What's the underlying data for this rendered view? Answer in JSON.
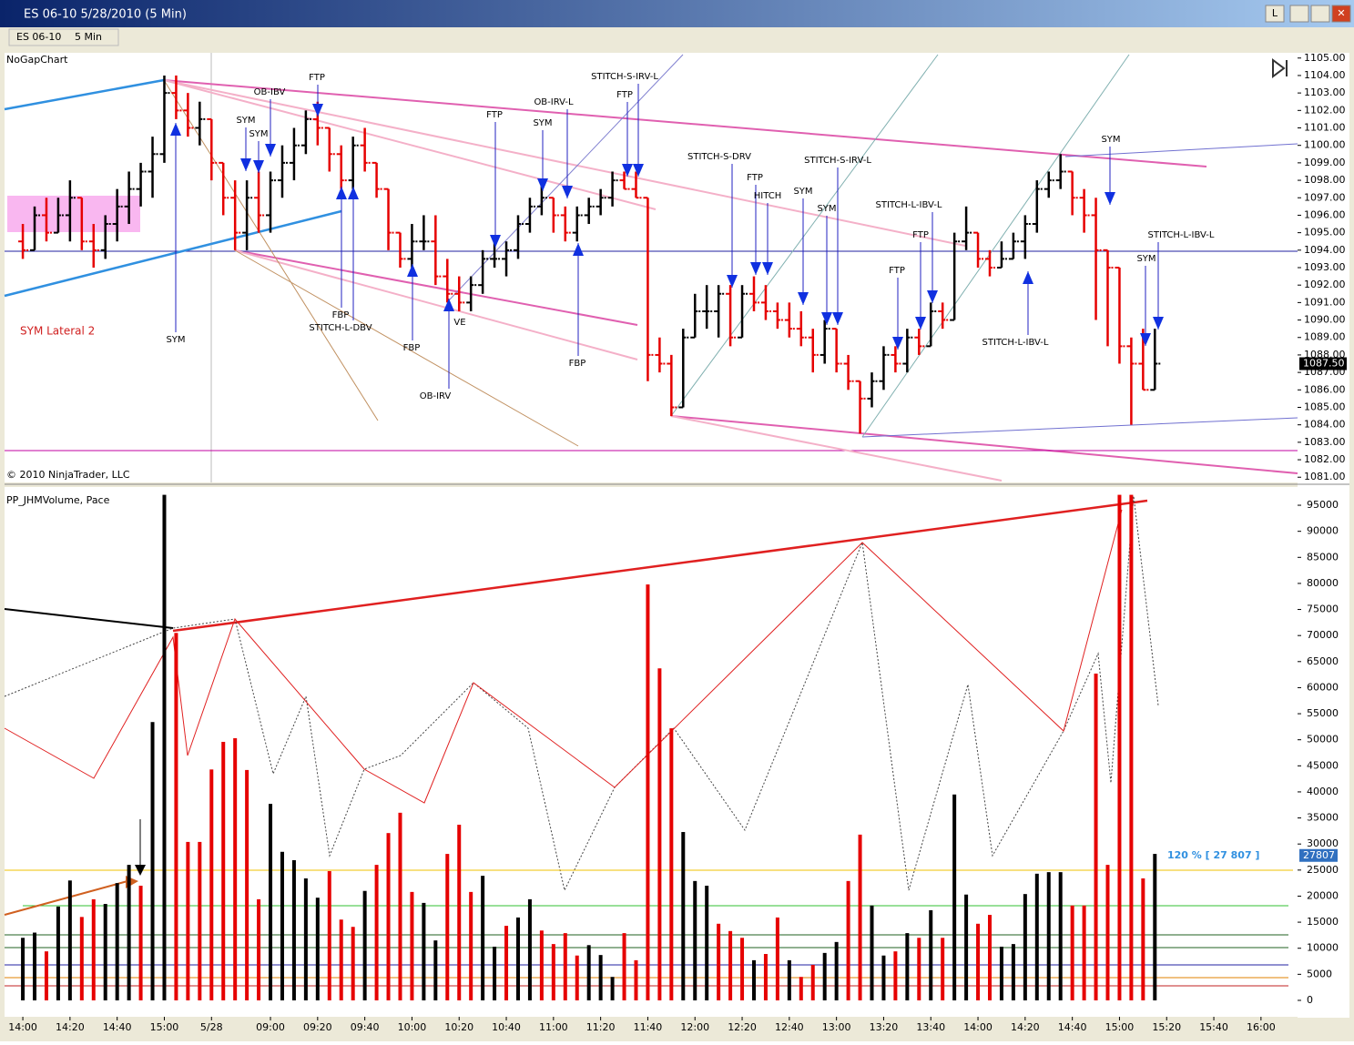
{
  "window": {
    "title": "ES 06-10  5/28/2010 (5 Min)",
    "toolbar": [
      "ES 06-10",
      "5 Min"
    ],
    "buttons": [
      "L"
    ]
  },
  "chart_data": [
    {
      "type": "ohlc",
      "panel_label": "NoGapChart",
      "copyright": "© 2010 NinjaTrader, LLC",
      "note": "SYM Lateral 2",
      "up_color": "#000000",
      "down_color": "#e60000",
      "xlim": [
        -1.55,
        108.1
      ],
      "ylim": [
        1080.7,
        1105.3
      ],
      "yticks": [
        {
          "value": 1081,
          "label": "1081.00"
        },
        {
          "value": 1082,
          "label": "1082.00"
        },
        {
          "value": 1083,
          "label": "1083.00"
        },
        {
          "value": 1084,
          "label": "1084.00"
        },
        {
          "value": 1085,
          "label": "1085.00"
        },
        {
          "value": 1086,
          "label": "1086.00"
        },
        {
          "value": 1087,
          "label": "1087.00"
        },
        {
          "value": 1088,
          "label": "1088.00"
        },
        {
          "value": 1089,
          "label": "1089.00"
        },
        {
          "value": 1090,
          "label": "1090.00"
        },
        {
          "value": 1091,
          "label": "1091.00"
        },
        {
          "value": 1092,
          "label": "1092.00"
        },
        {
          "value": 1093,
          "label": "1093.00"
        },
        {
          "value": 1094,
          "label": "1094.00"
        },
        {
          "value": 1095,
          "label": "1095.00"
        },
        {
          "value": 1096,
          "label": "1096.00"
        },
        {
          "value": 1097,
          "label": "1097.00"
        },
        {
          "value": 1098,
          "label": "1098.00"
        },
        {
          "value": 1099,
          "label": "1099.00"
        },
        {
          "value": 1100,
          "label": "1100.00"
        },
        {
          "value": 1101,
          "label": "1101.00"
        },
        {
          "value": 1102,
          "label": "1102.00"
        },
        {
          "value": 1103,
          "label": "1103.00"
        },
        {
          "value": 1104,
          "label": "1104.00"
        },
        {
          "value": 1105,
          "label": "1105.00"
        }
      ],
      "last_price": {
        "value": 1087.5,
        "label": "1087.50"
      },
      "open": [
        1094.5,
        1094,
        1096,
        1095,
        1096,
        1097,
        1094.5,
        1094,
        1095.5,
        1096.5,
        1097.5,
        1098.5,
        1099.5,
        1103,
        1102,
        1101,
        1101.5,
        1099,
        1097,
        1095,
        1097,
        1096,
        1098,
        1099,
        1100,
        1101.5,
        1101,
        1099.5,
        1098,
        1100,
        1099,
        1097.5,
        1095,
        1093.5,
        1094.5,
        1094.5,
        1092.5,
        1091.5,
        1091,
        1092,
        1093.5,
        1093.5,
        1094,
        1095.5,
        1096.5,
        1097,
        1096,
        1095,
        1096,
        1096.5,
        1097,
        1098,
        1097.5,
        1097,
        1088,
        1087.5,
        1085,
        1089,
        1090.5,
        1090.5,
        1091.5,
        1089,
        1091.5,
        1091,
        1090.5,
        1090,
        1089.5,
        1089,
        1088,
        1089.5,
        1087.5,
        1086.5,
        1085.5,
        1086.5,
        1088,
        1087.5,
        1089,
        1088.5,
        1090.5,
        1090,
        1094.5,
        1095,
        1093.5,
        1093,
        1093.5,
        1094.5,
        1095.5,
        1097.5,
        1098,
        1098.5,
        1097,
        1096,
        1094,
        1093,
        1088.5,
        1087.5,
        1086
      ],
      "high": [
        1095.5,
        1096.5,
        1097,
        1097,
        1098,
        1097,
        1095.5,
        1096,
        1097.5,
        1098.5,
        1099,
        1100.5,
        1104,
        1104,
        1103,
        1102.5,
        1101.5,
        1099,
        1098,
        1098,
        1098.5,
        1098.5,
        1100,
        1101,
        1102,
        1102.5,
        1101,
        1100,
        1100.5,
        1101,
        1099,
        1097.5,
        1095,
        1095.5,
        1096,
        1096,
        1093.5,
        1092.5,
        1092.5,
        1094,
        1094.5,
        1094.5,
        1096,
        1097,
        1098,
        1097,
        1096.5,
        1096.5,
        1097,
        1097.5,
        1098.5,
        1098.5,
        1098.5,
        1097,
        1089,
        1088,
        1089.5,
        1091.5,
        1092,
        1092,
        1092,
        1092,
        1092.5,
        1092,
        1091,
        1091,
        1090.5,
        1089.5,
        1090,
        1089.5,
        1088,
        1086.5,
        1087,
        1088.5,
        1088.5,
        1089.5,
        1089.5,
        1091,
        1091,
        1095,
        1096.5,
        1095,
        1094,
        1094.5,
        1095,
        1096,
        1098,
        1098.5,
        1099.5,
        1098.5,
        1097.5,
        1097,
        1094,
        1093,
        1089,
        1089.5,
        1089.5
      ],
      "low": [
        1093.5,
        1094,
        1094.5,
        1095,
        1094.5,
        1094,
        1093,
        1093.5,
        1094.5,
        1095.5,
        1096.5,
        1097,
        1099,
        1101.5,
        1100.5,
        1100,
        1098,
        1096,
        1094,
        1094,
        1095,
        1095,
        1097,
        1098,
        1099.5,
        1100,
        1098.5,
        1097.5,
        1097.5,
        1098.5,
        1097,
        1094,
        1093,
        1093,
        1094,
        1092,
        1091,
        1090.5,
        1090.5,
        1091.5,
        1093,
        1092.5,
        1093.5,
        1095,
        1096,
        1095,
        1094.5,
        1094.5,
        1095.5,
        1096,
        1096.5,
        1097.5,
        1097,
        1086.5,
        1087,
        1084.5,
        1085,
        1089,
        1089.5,
        1089,
        1088.5,
        1089,
        1090.5,
        1090,
        1089.5,
        1089,
        1088.5,
        1087,
        1087.5,
        1087,
        1086,
        1083.5,
        1085,
        1086,
        1087,
        1087,
        1088,
        1088.5,
        1089.5,
        1090,
        1094,
        1093,
        1092.5,
        1093,
        1093.5,
        1093.5,
        1095,
        1097,
        1097.5,
        1096,
        1095,
        1090,
        1088.5,
        1087.5,
        1084,
        1086,
        1086
      ],
      "close": [
        1094,
        1096,
        1095,
        1096,
        1097,
        1094.5,
        1094,
        1095.5,
        1096.5,
        1097.5,
        1098.5,
        1099.5,
        1103,
        1102,
        1101,
        1101.5,
        1099,
        1097,
        1095,
        1097,
        1096,
        1098,
        1099,
        1100,
        1101.5,
        1101,
        1099.5,
        1098,
        1100,
        1099,
        1097.5,
        1095,
        1093.5,
        1094.5,
        1094.5,
        1092.5,
        1091.5,
        1091,
        1092,
        1093.5,
        1093.5,
        1094,
        1095.5,
        1096.5,
        1097,
        1096,
        1095,
        1096,
        1096.5,
        1097,
        1098,
        1097.5,
        1097,
        1088,
        1087.5,
        1085,
        1089,
        1090.5,
        1090.5,
        1091.5,
        1089,
        1091.5,
        1091,
        1090.5,
        1090,
        1089.5,
        1089,
        1088,
        1089.5,
        1087.5,
        1086.5,
        1085.5,
        1086.5,
        1088,
        1087.5,
        1089,
        1088.5,
        1090.5,
        1090,
        1094.5,
        1095,
        1093.5,
        1093,
        1093.5,
        1094.5,
        1095.5,
        1097.5,
        1098,
        1098.5,
        1097,
        1096,
        1094,
        1093,
        1088.5,
        1087.5,
        1086,
        1087.5
      ],
      "annotations": [
        "SYM",
        "SYM",
        "OB-IBV",
        "FTP",
        "FBP",
        "STITCH-L-DBV",
        "SYM",
        "FBP",
        "VE",
        "OB-IRV",
        "FTP",
        "SYM",
        "OB-IRV-L",
        "STITCH-S-IRV-L",
        "FTP",
        "FBP",
        "STITCH-S-DRV",
        "FTP",
        "HITCH",
        "SYM",
        "SYM",
        "STITCH-S-IRV-L",
        "STITCH-L-IBV-L",
        "FTP",
        "FTP",
        "STITCH-L-IBV-L",
        "SYM",
        "STITCH-L-IBV-L",
        "SYM"
      ]
    },
    {
      "type": "volume",
      "panel_label": "PP_JHMVolume, Pace",
      "pace_label": "120 % [ 27 807 ]",
      "last_volume": 27807,
      "xlim": [
        -1.55,
        108.1
      ],
      "ylim": [
        -3150,
        98500
      ],
      "yticks": [
        0,
        5000,
        10000,
        15000,
        20000,
        25000,
        30000,
        35000,
        40000,
        45000,
        50000,
        55000,
        60000,
        65000,
        70000,
        75000,
        80000,
        85000,
        90000,
        95000
      ],
      "xticks": [
        {
          "value": 0,
          "label": "14:00"
        },
        {
          "value": 4,
          "label": "14:20"
        },
        {
          "value": 8,
          "label": "14:40"
        },
        {
          "value": 12,
          "label": "15:00"
        },
        {
          "value": 16,
          "label": "5/28"
        },
        {
          "value": 21,
          "label": "09:00"
        },
        {
          "value": 25,
          "label": "09:20"
        },
        {
          "value": 29,
          "label": "09:40"
        },
        {
          "value": 33,
          "label": "10:00"
        },
        {
          "value": 37,
          "label": "10:20"
        },
        {
          "value": 41,
          "label": "10:40"
        },
        {
          "value": 45,
          "label": "11:00"
        },
        {
          "value": 49,
          "label": "11:20"
        },
        {
          "value": 53,
          "label": "11:40"
        },
        {
          "value": 57,
          "label": "12:00"
        },
        {
          "value": 61,
          "label": "12:20"
        },
        {
          "value": 65,
          "label": "12:40"
        },
        {
          "value": 69,
          "label": "13:00"
        },
        {
          "value": 73,
          "label": "13:20"
        },
        {
          "value": 77,
          "label": "13:40"
        },
        {
          "value": 81,
          "label": "14:00"
        },
        {
          "value": 85,
          "label": "14:20"
        },
        {
          "value": 89,
          "label": "14:40"
        },
        {
          "value": 93,
          "label": "15:00"
        },
        {
          "value": 97,
          "label": "15:20"
        },
        {
          "value": 101,
          "label": "15:40"
        },
        {
          "value": 105,
          "label": "16:00"
        }
      ],
      "values": [
        12000,
        13000,
        9400,
        18000,
        23000,
        16000,
        19400,
        18500,
        22500,
        26000,
        22000,
        53400,
        97000,
        70500,
        30400,
        30400,
        44300,
        49600,
        50300,
        44200,
        19400,
        37700,
        28500,
        26900,
        23400,
        19700,
        24800,
        15500,
        14100,
        21000,
        26000,
        32100,
        36000,
        20800,
        18700,
        11500,
        28100,
        33700,
        20800,
        23900,
        10300,
        14300,
        15900,
        19400,
        13400,
        10800,
        12900,
        8600,
        10600,
        8700,
        4500,
        12900,
        7700,
        79800,
        63700,
        52200,
        32300,
        22900,
        22000,
        14700,
        13300,
        12000,
        7700,
        8900,
        15900,
        7700,
        4500,
        6800,
        9100,
        11200,
        22900,
        31800,
        18200,
        8600,
        9400,
        12900,
        12000,
        17300,
        12000,
        39500,
        20300,
        14700,
        16400,
        10300,
        10800,
        20400,
        24300,
        24600,
        24600,
        18200,
        18200,
        62700,
        26000,
        97000,
        97000,
        23400,
        28100
      ],
      "colors": [
        "#000000",
        "#000000",
        "#e60000",
        "#000000",
        "#000000",
        "#e60000",
        "#e60000",
        "#000000",
        "#000000",
        "#000000",
        "#e60000",
        "#000000",
        "#000000",
        "#e60000",
        "#e60000",
        "#e60000",
        "#e60000",
        "#e60000",
        "#e60000",
        "#e60000",
        "#e60000",
        "#000000",
        "#000000",
        "#000000",
        "#000000",
        "#000000",
        "#e60000",
        "#e60000",
        "#e60000",
        "#000000",
        "#e60000",
        "#e60000",
        "#e60000",
        "#e60000",
        "#000000",
        "#000000",
        "#e60000",
        "#e60000",
        "#e60000",
        "#000000",
        "#000000",
        "#e60000",
        "#000000",
        "#000000",
        "#e60000",
        "#e60000",
        "#e60000",
        "#e60000",
        "#000000",
        "#000000",
        "#000000",
        "#e60000",
        "#e60000",
        "#e60000",
        "#e60000",
        "#e60000",
        "#000000",
        "#000000",
        "#000000",
        "#e60000",
        "#e60000",
        "#e60000",
        "#000000",
        "#e60000",
        "#e60000",
        "#000000",
        "#e60000",
        "#e60000",
        "#000000",
        "#000000",
        "#e60000",
        "#e60000",
        "#000000",
        "#000000",
        "#e60000",
        "#000000",
        "#e60000",
        "#000000",
        "#e60000",
        "#000000",
        "#000000",
        "#e60000",
        "#e60000",
        "#000000",
        "#000000",
        "#000000",
        "#000000",
        "#000000",
        "#000000",
        "#e60000",
        "#e60000",
        "#e60000",
        "#e60000",
        "#e60000",
        "#e60000",
        "#e60000",
        "#000000"
      ]
    }
  ]
}
